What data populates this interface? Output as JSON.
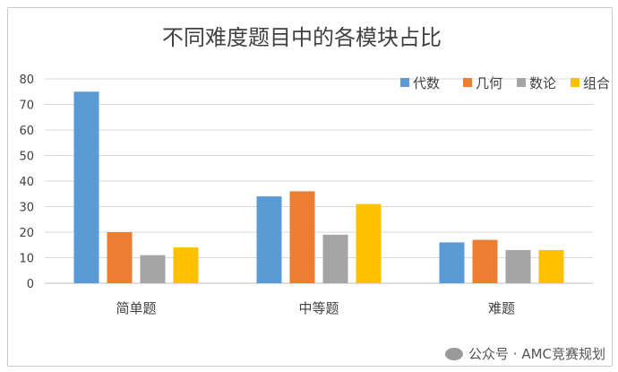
{
  "chart_data": {
    "type": "bar",
    "title": "不同难度题目中的各模块占比",
    "categories": [
      "简单题",
      "中等题",
      "难题"
    ],
    "series": [
      {
        "name": "代数",
        "color": "#5B9BD5",
        "values": [
          75,
          34,
          16
        ]
      },
      {
        "name": "几何",
        "color": "#ED7D31",
        "values": [
          20,
          36,
          17
        ]
      },
      {
        "name": "数论",
        "color": "#A5A5A5",
        "values": [
          11,
          19,
          13
        ]
      },
      {
        "name": "组合",
        "color": "#FFC000",
        "values": [
          14,
          31,
          13
        ]
      }
    ],
    "ylim": [
      0,
      80
    ],
    "yticks": [
      0,
      10,
      20,
      30,
      40,
      50,
      60,
      70,
      80
    ],
    "grid": true,
    "legend": "top-right"
  },
  "watermark": {
    "text": "公众号 · AMC竞赛规划"
  }
}
